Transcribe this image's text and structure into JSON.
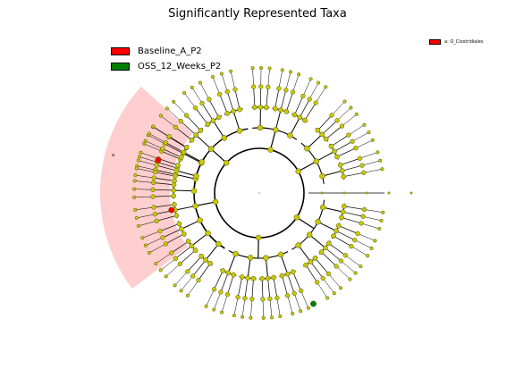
{
  "title": "Significantly Represented Taxa",
  "legend": [
    {
      "label": "Baseline_A_P2",
      "color": "#ff0000"
    },
    {
      "label": "OSS_12_Weeks_P2",
      "color": "#008000"
    }
  ],
  "clade_key": {
    "label": "a: O_Clostridiales",
    "color": "#ff0000"
  },
  "clade_letter": "a",
  "colors": {
    "node": "#c8c80a",
    "node_stroke": "#555500",
    "branch": "#000000",
    "highlight": "#ffb3b3",
    "enriched_baseline": "#ff0000",
    "enriched_oss": "#008000"
  }
}
